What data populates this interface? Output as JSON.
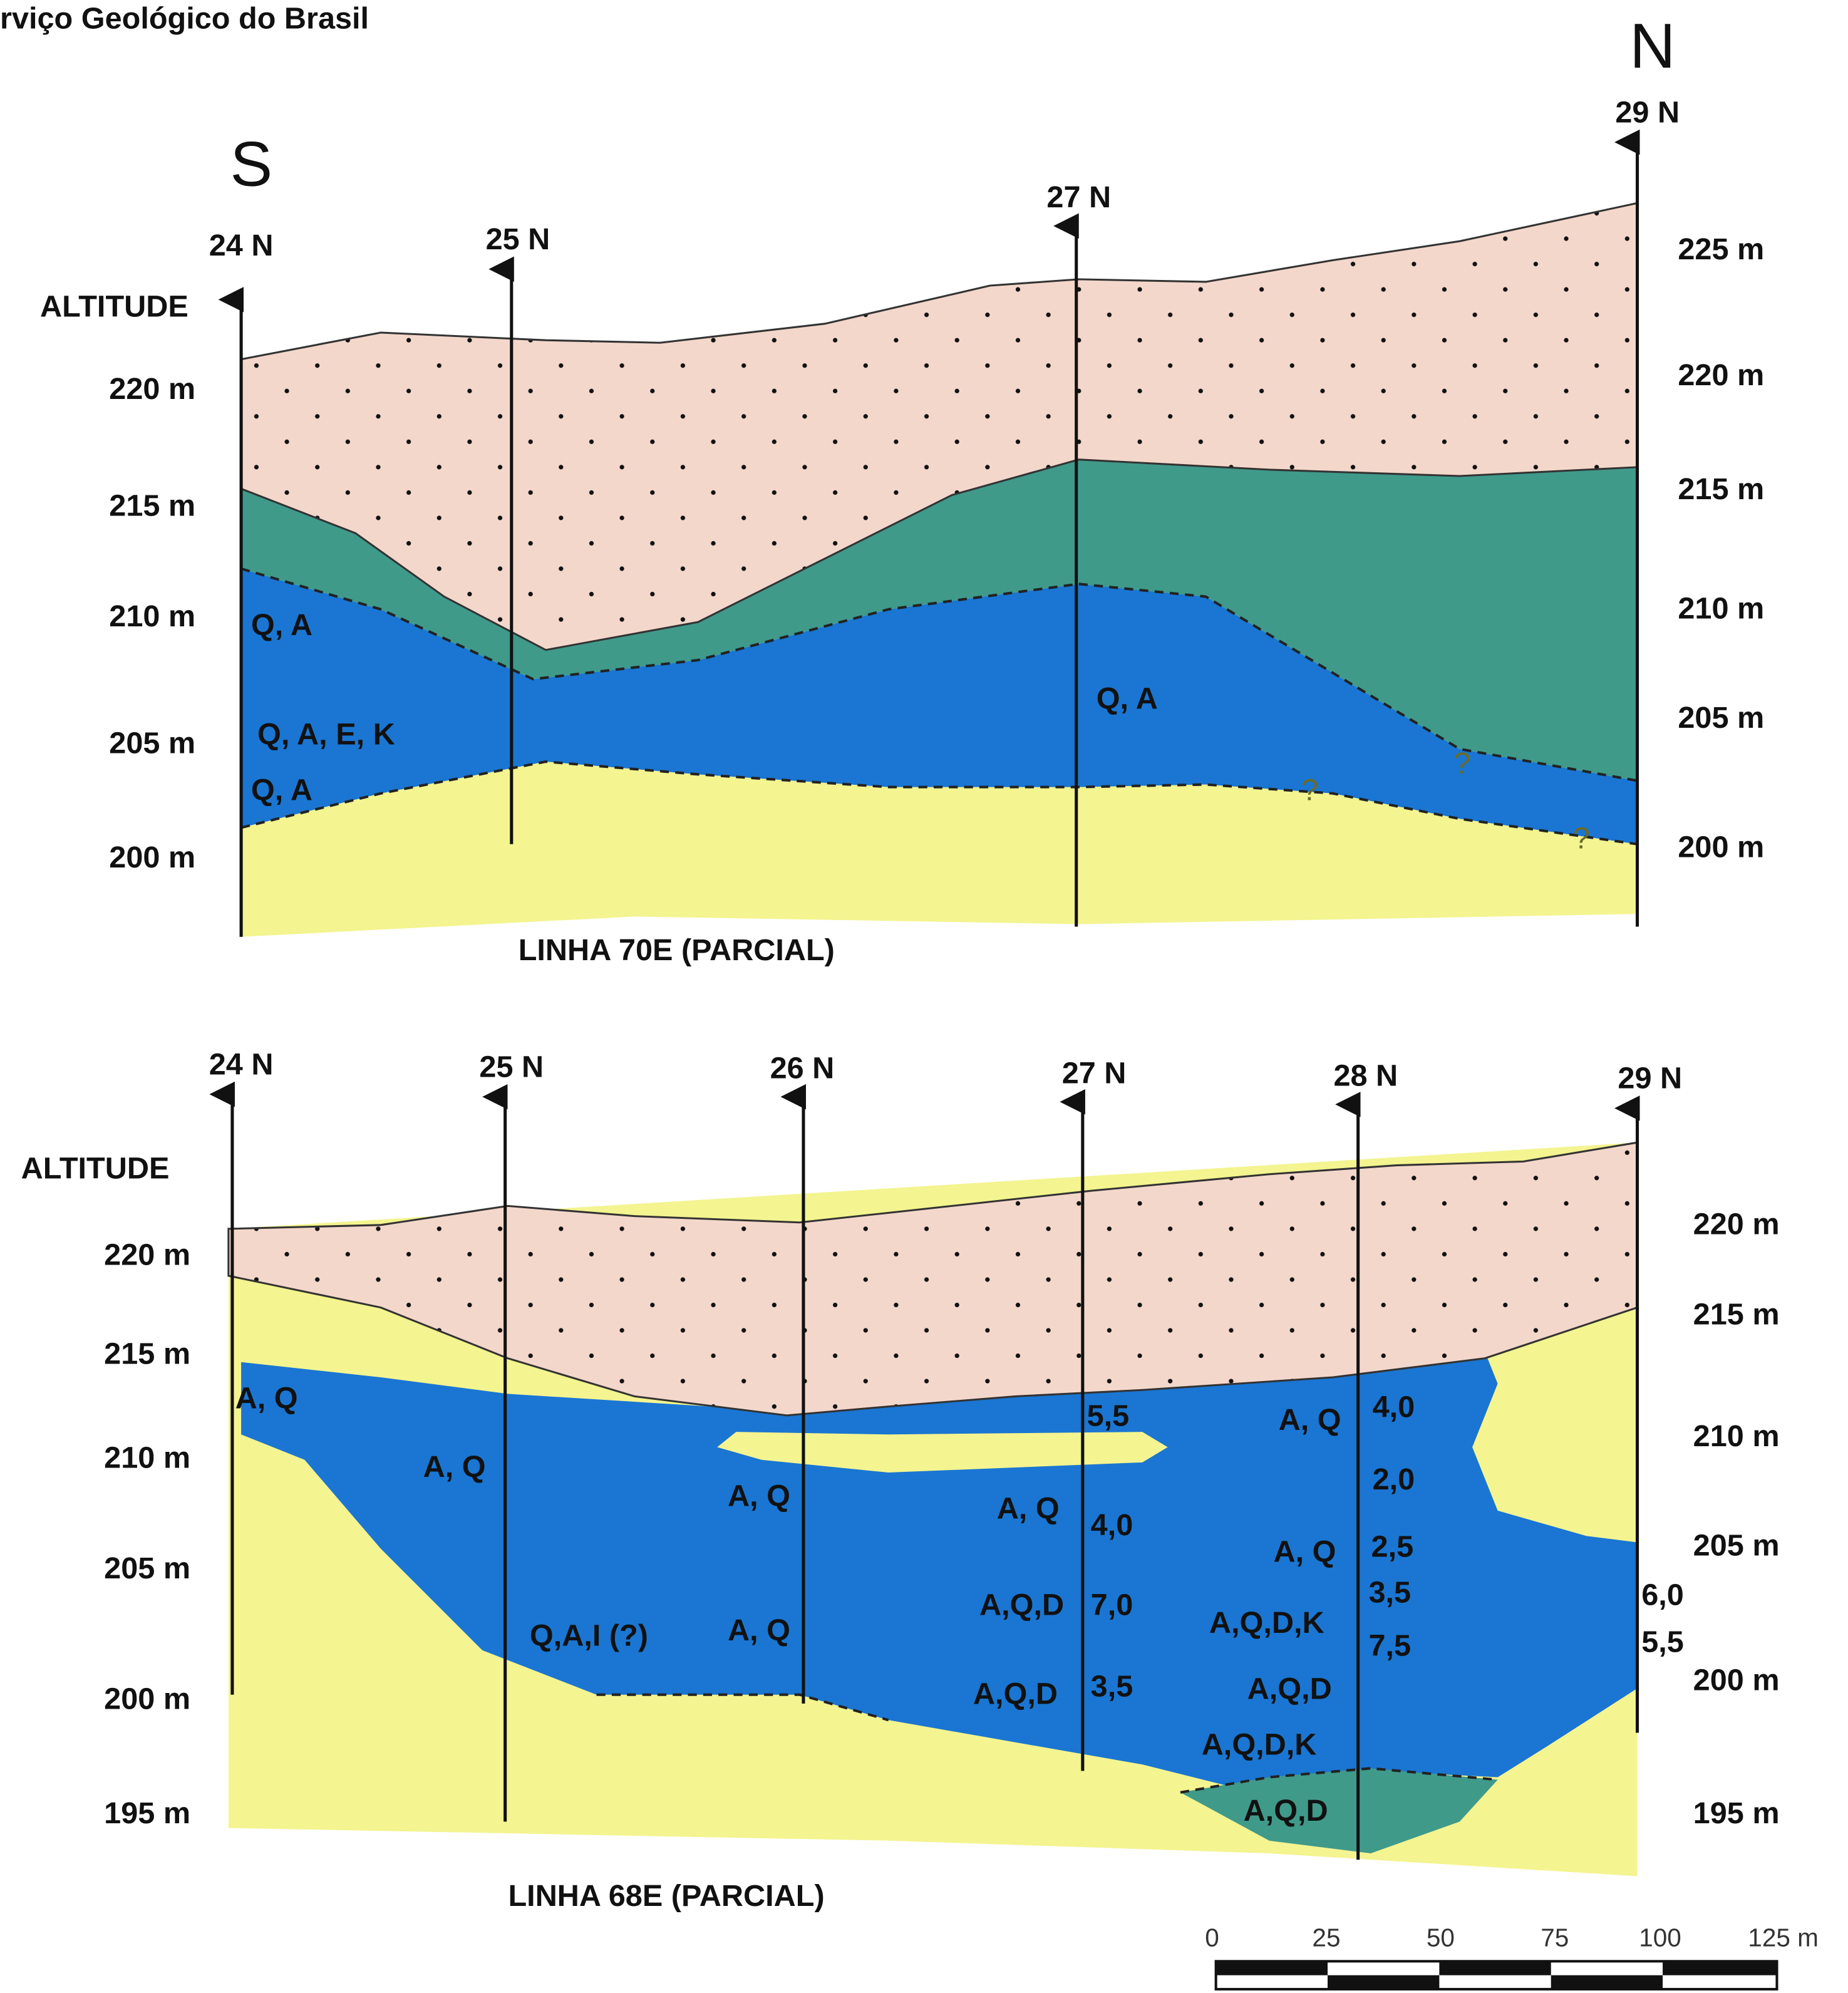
{
  "header": "rviço Geológico do Brasil",
  "compass": {
    "south": "S",
    "north": "N"
  },
  "sections": [
    {
      "title": "LINHA 70E (PARCIAL)",
      "axis_title": "ALTITUDE",
      "stations": [
        "24 N",
        "25 N",
        "27 N",
        "29 N"
      ],
      "left_altitudes": [
        "220 m",
        "215 m",
        "210 m",
        "205 m",
        "200 m"
      ],
      "right_altitudes": [
        "225 m",
        "220 m",
        "215 m",
        "210 m",
        "205 m",
        "200 m"
      ],
      "annotations": [
        "Q, A",
        "Q, A, E, K",
        "Q, A",
        "Q, A",
        "?",
        "?",
        "?"
      ]
    },
    {
      "title": "LINHA 68E (PARCIAL)",
      "axis_title": "ALTITUDE",
      "stations": [
        "24 N",
        "25 N",
        "26 N",
        "27 N",
        "28 N",
        "29 N"
      ],
      "left_altitudes": [
        "220 m",
        "215 m",
        "210 m",
        "205 m",
        "200 m",
        "195 m"
      ],
      "right_altitudes": [
        "220 m",
        "215 m",
        "210 m",
        "205 m",
        "200 m",
        "195 m"
      ],
      "annotations": [
        "A, Q",
        "A, Q",
        "A, Q",
        "A, Q",
        "Q,A,I (?)",
        "A, Q",
        "A,Q,D",
        "A,Q,D",
        "5,5",
        "4,0",
        "7,0",
        "3,5",
        "A, Q",
        "4,0",
        "2,0",
        "A, Q",
        "2,5",
        "3,5",
        "A,Q,D,K",
        "7,5",
        "6,0",
        "5,5",
        "A,Q,D",
        "A,Q,D,K",
        "A,Q,D"
      ]
    }
  ],
  "scale_bar": {
    "ticks": [
      "0",
      "25",
      "50",
      "75",
      "100",
      "125 m"
    ]
  }
}
